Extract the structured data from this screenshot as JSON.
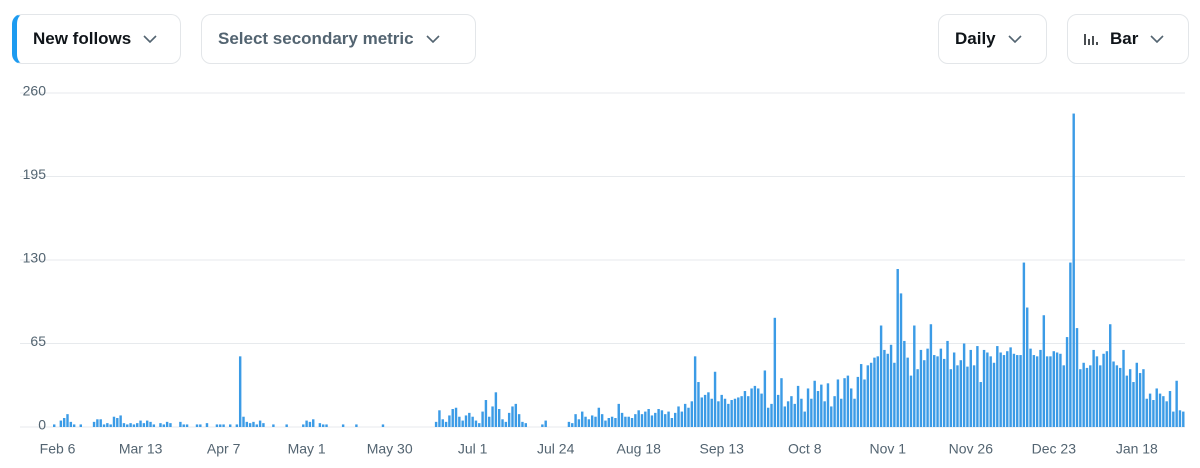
{
  "toolbar": {
    "primary_metric": "New follows",
    "secondary_metric": "Select secondary metric",
    "interval": "Daily",
    "chart_style": "Bar"
  },
  "chart_data": {
    "type": "bar",
    "color": "#3b9be6",
    "grid": true,
    "ylim": [
      0,
      260
    ],
    "yticks": [
      0,
      65,
      130,
      195,
      260
    ],
    "categories": [
      null,
      null,
      null,
      null,
      null,
      null,
      "Feb 6",
      null,
      null,
      null,
      null,
      null,
      null,
      null,
      null,
      null,
      null,
      null,
      null,
      null,
      null,
      null,
      null,
      null,
      null,
      null,
      null,
      null,
      null,
      null,
      null,
      "Mar 13",
      null,
      null,
      null,
      null,
      null,
      null,
      null,
      null,
      null,
      null,
      null,
      null,
      null,
      null,
      null,
      null,
      null,
      null,
      null,
      null,
      null,
      null,
      null,
      null,
      "Apr 7",
      null,
      null,
      null,
      null,
      null,
      null,
      null,
      null,
      null,
      null,
      null,
      null,
      null,
      null,
      null,
      null,
      null,
      null,
      null,
      null,
      null,
      null,
      null,
      null,
      "May 1",
      null,
      null,
      null,
      null,
      null,
      null,
      null,
      null,
      null,
      null,
      null,
      null,
      null,
      null,
      null,
      null,
      null,
      null,
      null,
      null,
      null,
      null,
      null,
      null,
      "May 30",
      null,
      null,
      null,
      null,
      null,
      null,
      null,
      null,
      null,
      null,
      null,
      null,
      null,
      null,
      null,
      null,
      null,
      null,
      null,
      null,
      null,
      null,
      null,
      null,
      "Jul 1",
      null,
      null,
      null,
      null,
      null,
      null,
      null,
      null,
      null,
      null,
      null,
      null,
      null,
      null,
      null,
      null,
      null,
      null,
      null,
      null,
      null,
      null,
      null,
      null,
      "Jul 24",
      null,
      null,
      null,
      null,
      null,
      null,
      null,
      null,
      null,
      null,
      null,
      null,
      null,
      null,
      null,
      null,
      null,
      null,
      null,
      null,
      null,
      null,
      null,
      null,
      "Aug 18",
      null,
      null,
      null,
      null,
      null,
      null,
      null,
      null,
      null,
      null,
      null,
      null,
      null,
      null,
      null,
      null,
      null,
      null,
      null,
      null,
      null,
      null,
      null,
      null,
      "Sep 13",
      null,
      null,
      null,
      null,
      null,
      null,
      null,
      null,
      null,
      null,
      null,
      null,
      null,
      null,
      null,
      null,
      null,
      null,
      null,
      null,
      null,
      null,
      null,
      null,
      "Oct 8",
      null,
      null,
      null,
      null,
      null,
      null,
      null,
      null,
      null,
      null,
      null,
      null,
      null,
      null,
      null,
      null,
      null,
      null,
      null,
      null,
      null,
      null,
      null,
      null,
      "Nov 1",
      null,
      null,
      null,
      null,
      null,
      null,
      null,
      null,
      null,
      null,
      null,
      null,
      null,
      null,
      null,
      null,
      null,
      null,
      null,
      null,
      null,
      null,
      null,
      null,
      "Nov 26",
      null,
      null,
      null,
      null,
      null,
      null,
      null,
      null,
      null,
      null,
      null,
      null,
      null,
      null,
      null,
      null,
      null,
      null,
      null,
      null,
      null,
      null,
      null,
      null,
      "Dec 23",
      null,
      null,
      null,
      null,
      null,
      null,
      null,
      null,
      null,
      null,
      null,
      null,
      null,
      null,
      null,
      null,
      null,
      null,
      null,
      null,
      null,
      null,
      null,
      null,
      "Jan 18",
      null,
      null,
      null,
      null,
      null,
      null,
      null,
      null,
      null,
      null,
      null,
      null,
      null,
      null
    ],
    "values": [
      0,
      0,
      0,
      0,
      0,
      2,
      0,
      5,
      7,
      10,
      4,
      2,
      0,
      2,
      0,
      0,
      0,
      4,
      6,
      6,
      2,
      3,
      2,
      8,
      7,
      9,
      3,
      2,
      3,
      2,
      3,
      5,
      3,
      5,
      4,
      2,
      0,
      3,
      2,
      4,
      3,
      0,
      0,
      4,
      2,
      2,
      0,
      0,
      2,
      2,
      0,
      3,
      0,
      0,
      2,
      2,
      2,
      0,
      2,
      0,
      2,
      55,
      8,
      4,
      3,
      4,
      2,
      5,
      3,
      0,
      0,
      2,
      0,
      0,
      0,
      2,
      0,
      0,
      0,
      0,
      2,
      5,
      4,
      6,
      0,
      3,
      2,
      2,
      0,
      0,
      0,
      0,
      2,
      0,
      0,
      0,
      2,
      0,
      0,
      0,
      0,
      0,
      0,
      0,
      2,
      0,
      0,
      0,
      0,
      0,
      0,
      0,
      0,
      0,
      0,
      0,
      0,
      0,
      0,
      0,
      4,
      13,
      6,
      4,
      9,
      14,
      15,
      8,
      5,
      9,
      11,
      8,
      5,
      3,
      12,
      21,
      8,
      16,
      27,
      14,
      6,
      4,
      11,
      16,
      18,
      10,
      4,
      3,
      0,
      0,
      0,
      0,
      2,
      5,
      0,
      0,
      0,
      0,
      0,
      0,
      4,
      3,
      10,
      6,
      12,
      8,
      6,
      9,
      8,
      15,
      10,
      5,
      7,
      8,
      7,
      18,
      11,
      8,
      8,
      7,
      10,
      13,
      10,
      12,
      14,
      9,
      11,
      14,
      13,
      10,
      12,
      7,
      11,
      16,
      12,
      18,
      15,
      20,
      55,
      35,
      23,
      25,
      27,
      22,
      43,
      20,
      25,
      22,
      18,
      21,
      22,
      23,
      24,
      28,
      24,
      30,
      32,
      30,
      26,
      44,
      15,
      18,
      85,
      25,
      38,
      16,
      20,
      24,
      18,
      32,
      22,
      12,
      30,
      22,
      36,
      28,
      33,
      20,
      34,
      16,
      24,
      37,
      22,
      38,
      40,
      30,
      22,
      39,
      49,
      37,
      48,
      50,
      54,
      55,
      79,
      60,
      57,
      64,
      50,
      123,
      104,
      67,
      54,
      40,
      79,
      45,
      60,
      52,
      61,
      80,
      56,
      55,
      61,
      53,
      67,
      45,
      58,
      48,
      52,
      65,
      47,
      60,
      48,
      63,
      35,
      60,
      58,
      55,
      50,
      63,
      58,
      56,
      59,
      62,
      57,
      56,
      56,
      128,
      93,
      61,
      56,
      55,
      60,
      87,
      55,
      55,
      59,
      58,
      57,
      48,
      70,
      128,
      244,
      77,
      45,
      50,
      46,
      48,
      60,
      55,
      48,
      57,
      59,
      80,
      51,
      48,
      46,
      60,
      40,
      45,
      35,
      50,
      42,
      45,
      22,
      26,
      21,
      30,
      26,
      24,
      20,
      28,
      12,
      36,
      13,
      12
    ]
  }
}
